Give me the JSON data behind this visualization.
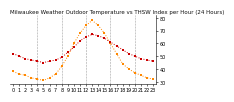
{
  "title": "Milwaukee Weather Outdoor Temperature vs THSW Index per Hour (24 Hours)",
  "hours": [
    0,
    1,
    2,
    3,
    4,
    5,
    6,
    7,
    8,
    9,
    10,
    11,
    12,
    13,
    14,
    15,
    16,
    17,
    18,
    19,
    20,
    21,
    22,
    23
  ],
  "temp_f": [
    52,
    50,
    48,
    47,
    46,
    45,
    46,
    47,
    49,
    53,
    57,
    62,
    65,
    67,
    66,
    64,
    61,
    58,
    55,
    52,
    50,
    48,
    47,
    46
  ],
  "thsw_f": [
    38,
    36,
    35,
    33,
    32,
    31,
    33,
    36,
    42,
    50,
    60,
    68,
    74,
    78,
    74,
    68,
    60,
    52,
    44,
    40,
    37,
    35,
    33,
    32
  ],
  "temp_color": "#cc0000",
  "thsw_color": "#ff8800",
  "bg_color": "#ffffff",
  "grid_color": "#888888",
  "ylim_min": 28,
  "ylim_max": 82,
  "ytick_labels": [
    "30",
    "40",
    "50",
    "60",
    "70",
    "80"
  ],
  "ytick_vals": [
    30,
    40,
    50,
    60,
    70,
    80
  ],
  "grid_hours": [
    4,
    8,
    12,
    16,
    20
  ],
  "title_fontsize": 4.0,
  "tick_fontsize": 3.5,
  "marker_size": 1.8,
  "dot_linewidth": 0.7
}
